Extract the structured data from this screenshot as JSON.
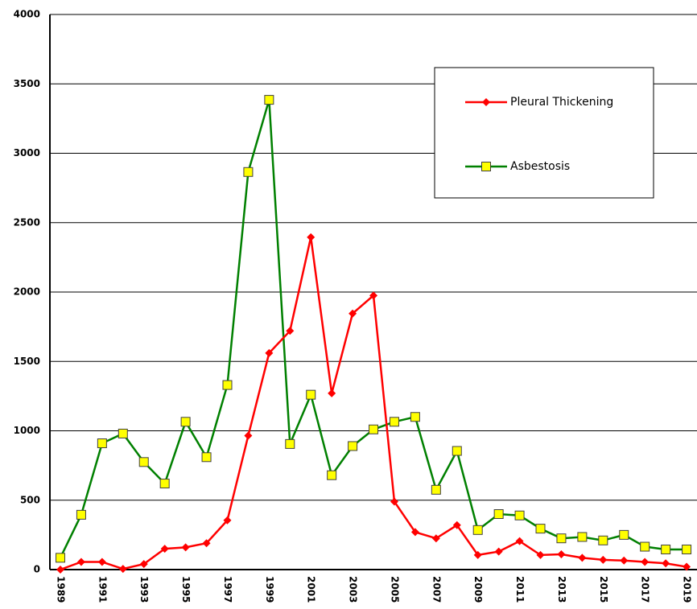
{
  "chart_data": {
    "type": "line",
    "categories": [
      "1989",
      null,
      "1991",
      null,
      "1993",
      null,
      "1995",
      null,
      "1997",
      null,
      "1999",
      null,
      "2001",
      null,
      "2003",
      null,
      "2005",
      null,
      "2007",
      null,
      "2009",
      null,
      "2011",
      null,
      "2013",
      null,
      "2015",
      null,
      "2017",
      null,
      "2019"
    ],
    "series": [
      {
        "name": "Pleural Thickening",
        "color": "#ff0000",
        "marker": "diamond",
        "values": [
          0,
          55,
          55,
          5,
          40,
          150,
          160,
          190,
          355,
          965,
          1560,
          1720,
          2395,
          1270,
          1845,
          1975,
          490,
          270,
          225,
          320,
          105,
          130,
          205,
          105,
          110,
          85,
          70,
          65,
          55,
          45,
          20
        ]
      },
      {
        "name": "Asbestosis",
        "color": "#008000",
        "marker": "square",
        "values": [
          85,
          395,
          910,
          980,
          775,
          620,
          1065,
          810,
          1330,
          2865,
          3385,
          905,
          1260,
          680,
          890,
          1010,
          1065,
          1100,
          575,
          855,
          285,
          400,
          390,
          295,
          225,
          235,
          210,
          250,
          165,
          145,
          145
        ]
      }
    ],
    "ylim": [
      0,
      4000
    ],
    "yticks": [
      0,
      500,
      1000,
      1500,
      2000,
      2500,
      3000,
      3500,
      4000
    ],
    "grid": true
  }
}
